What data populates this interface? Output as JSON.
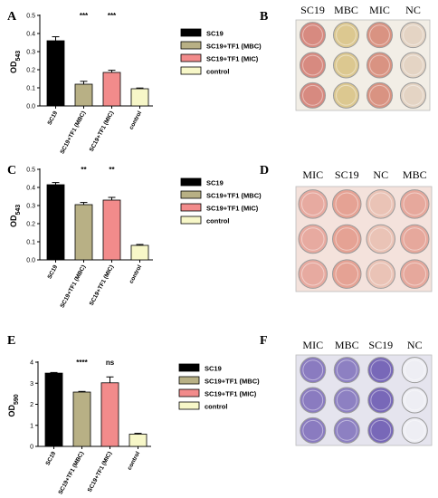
{
  "colors": {
    "SC19": "#000000",
    "MBC": "#b8b085",
    "MIC": "#f28b8b",
    "control": "#f7f7c8"
  },
  "panel_letters": [
    "A",
    "B",
    "C",
    "D",
    "E",
    "F"
  ],
  "chart_data": [
    {
      "type": "bar",
      "panel": "A",
      "ylabel_main": "OD",
      "ylabel_sub": "543",
      "categories": [
        "SC19",
        "SC19+TF1 (MBC)",
        "SC19+TF1 (MIC)",
        "control"
      ],
      "values": [
        0.36,
        0.12,
        0.185,
        0.095
      ],
      "errors": [
        0.022,
        0.016,
        0.012,
        0.004
      ],
      "significance": [
        "",
        "***",
        "***",
        ""
      ],
      "ylim": [
        0,
        0.5
      ],
      "yticks": [
        "0.0",
        "0.1",
        "0.2",
        "0.3",
        "0.4",
        "0.5"
      ],
      "legend": [
        "SC19",
        "SC19+TF1 (MBC)",
        "SC19+TF1 (MIC)",
        "control"
      ],
      "legend_placement": "right"
    },
    {
      "type": "bar",
      "panel": "C",
      "ylabel_main": "OD",
      "ylabel_sub": "543",
      "categories": [
        "SC19",
        "SC19+TF1 (MBC)",
        "SC19+TF1 (MIC)",
        "control"
      ],
      "values": [
        0.415,
        0.305,
        0.33,
        0.08
      ],
      "errors": [
        0.012,
        0.012,
        0.015,
        0.005
      ],
      "significance": [
        "",
        "**",
        "**",
        ""
      ],
      "ylim": [
        0,
        0.5
      ],
      "yticks": [
        "0.0",
        "0.1",
        "0.2",
        "0.3",
        "0.4",
        "0.5"
      ],
      "legend": [
        "SC19",
        "SC19+TF1 (MBC)",
        "SC19+TF1 (MIC)",
        "control"
      ],
      "legend_placement": "right"
    },
    {
      "type": "bar",
      "panel": "E",
      "ylabel_main": "OD",
      "ylabel_sub": "590",
      "categories": [
        "SC19",
        "SC19+TF1 (MBC)",
        "SC19+TF1 (MIC)",
        "control"
      ],
      "values": [
        3.48,
        2.58,
        3.02,
        0.58
      ],
      "errors": [
        0.03,
        0.03,
        0.28,
        0.04
      ],
      "significance": [
        "",
        "****",
        "ns",
        ""
      ],
      "ylim": [
        0,
        4
      ],
      "yticks": [
        "0",
        "1",
        "2",
        "3",
        "4"
      ],
      "legend": [
        "SC19",
        "SC19+TF1 (MBC)",
        "SC19+TF1 (MIC)",
        "control"
      ],
      "legend_placement": "right"
    }
  ],
  "plates": [
    {
      "panel": "B",
      "column_labels": [
        "SC19",
        "MBC",
        "MIC",
        "NC"
      ],
      "well_colors": [
        "#d78a80",
        "#dcc890",
        "#d99382",
        "#e4d4c4"
      ],
      "bg": "#f2eee6"
    },
    {
      "panel": "D",
      "column_labels": [
        "MIC",
        "SC19",
        "NC",
        "MBC"
      ],
      "well_colors": [
        "#e7aaa0",
        "#e5a294",
        "#eac3b6",
        "#e6a89c"
      ],
      "bg": "#f4e2dc"
    },
    {
      "panel": "F",
      "column_labels": [
        "MIC",
        "MBC",
        "SC19",
        "NC"
      ],
      "well_colors": [
        "#8a7bc0",
        "#8d80c2",
        "#7868b8",
        "#eeeef4"
      ],
      "bg": "#e5e4ee"
    }
  ]
}
